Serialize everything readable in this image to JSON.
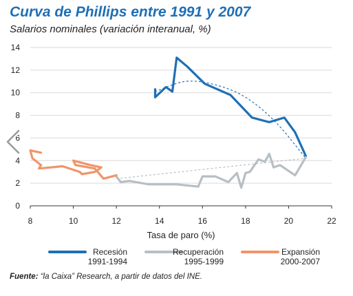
{
  "title": "Curva de Phillips entre 1991 y 2007",
  "subtitle": "Salarios nominales (variación interanual, %)",
  "source": {
    "label": "Fuente:",
    "text": " “la Caixa” Research, a partir de datos del INE."
  },
  "colors": {
    "title": "#1f6fb5",
    "recesion": "#1f6fb5",
    "recuperacion": "#b7bfc4",
    "expansion": "#f0956a",
    "grid": "#d9d9d9"
  },
  "nav_icon": "chevron-left-icon",
  "chart_data": {
    "type": "line",
    "xlabel": "Tasa de paro (%)",
    "ylabel": "",
    "xlim": [
      8,
      22
    ],
    "ylim": [
      0,
      14
    ],
    "xticks": [
      "8",
      "10",
      "12",
      "14",
      "16",
      "18",
      "20",
      "22"
    ],
    "yticks": [
      "0",
      "2",
      "4",
      "6",
      "8",
      "10",
      "12",
      "14"
    ],
    "grid": "horizontal",
    "legend_position": "bottom",
    "series": [
      {
        "name": "Recesión",
        "name_line2": "1991-1994",
        "color": "#1f6fb5",
        "points": [
          [
            13.8,
            10.3
          ],
          [
            13.8,
            9.6
          ],
          [
            14.3,
            10.5
          ],
          [
            14.6,
            10.1
          ],
          [
            14.8,
            13.1
          ],
          [
            15.3,
            12.3
          ],
          [
            16.1,
            10.8
          ],
          [
            17.3,
            9.8
          ],
          [
            18.3,
            7.8
          ],
          [
            19.1,
            7.4
          ],
          [
            19.8,
            7.8
          ],
          [
            20.3,
            6.5
          ],
          [
            20.8,
            4.4
          ]
        ],
        "trend": [
          [
            13.8,
            10.1
          ],
          [
            15.2,
            11.0
          ],
          [
            16.6,
            10.7
          ],
          [
            18.0,
            9.6
          ],
          [
            19.4,
            7.4
          ],
          [
            20.8,
            4.2
          ]
        ]
      },
      {
        "name": "Recuperación",
        "name_line2": "1995-1999",
        "color": "#b7bfc4",
        "points": [
          [
            12.0,
            2.6
          ],
          [
            12.2,
            2.1
          ],
          [
            12.6,
            2.2
          ],
          [
            13.5,
            1.9
          ],
          [
            14.8,
            1.9
          ],
          [
            15.8,
            1.7
          ],
          [
            16.0,
            2.6
          ],
          [
            16.6,
            2.6
          ],
          [
            17.2,
            2.1
          ],
          [
            17.6,
            2.9
          ],
          [
            17.8,
            1.6
          ],
          [
            18.0,
            2.9
          ],
          [
            18.2,
            3.0
          ],
          [
            18.6,
            4.1
          ],
          [
            18.9,
            3.9
          ],
          [
            19.1,
            4.6
          ],
          [
            19.3,
            3.4
          ],
          [
            19.6,
            3.6
          ],
          [
            20.3,
            2.7
          ],
          [
            20.8,
            4.3
          ]
        ],
        "trend": [
          [
            12.0,
            2.4
          ],
          [
            20.8,
            4.2
          ]
        ]
      },
      {
        "name": "Expansión",
        "name_line2": "2000-2007",
        "color": "#f0956a",
        "points": [
          [
            8.5,
            4.7
          ],
          [
            8.0,
            4.9
          ],
          [
            8.1,
            4.2
          ],
          [
            8.5,
            3.6
          ],
          [
            8.4,
            3.3
          ],
          [
            9.5,
            3.5
          ],
          [
            10.3,
            3.0
          ],
          [
            10.4,
            2.8
          ],
          [
            11.0,
            3.0
          ],
          [
            11.3,
            3.4
          ],
          [
            10.8,
            3.6
          ],
          [
            10.0,
            4.0
          ],
          [
            10.1,
            3.6
          ],
          [
            11.0,
            3.3
          ],
          [
            11.4,
            2.4
          ],
          [
            12.0,
            2.7
          ]
        ]
      }
    ]
  }
}
